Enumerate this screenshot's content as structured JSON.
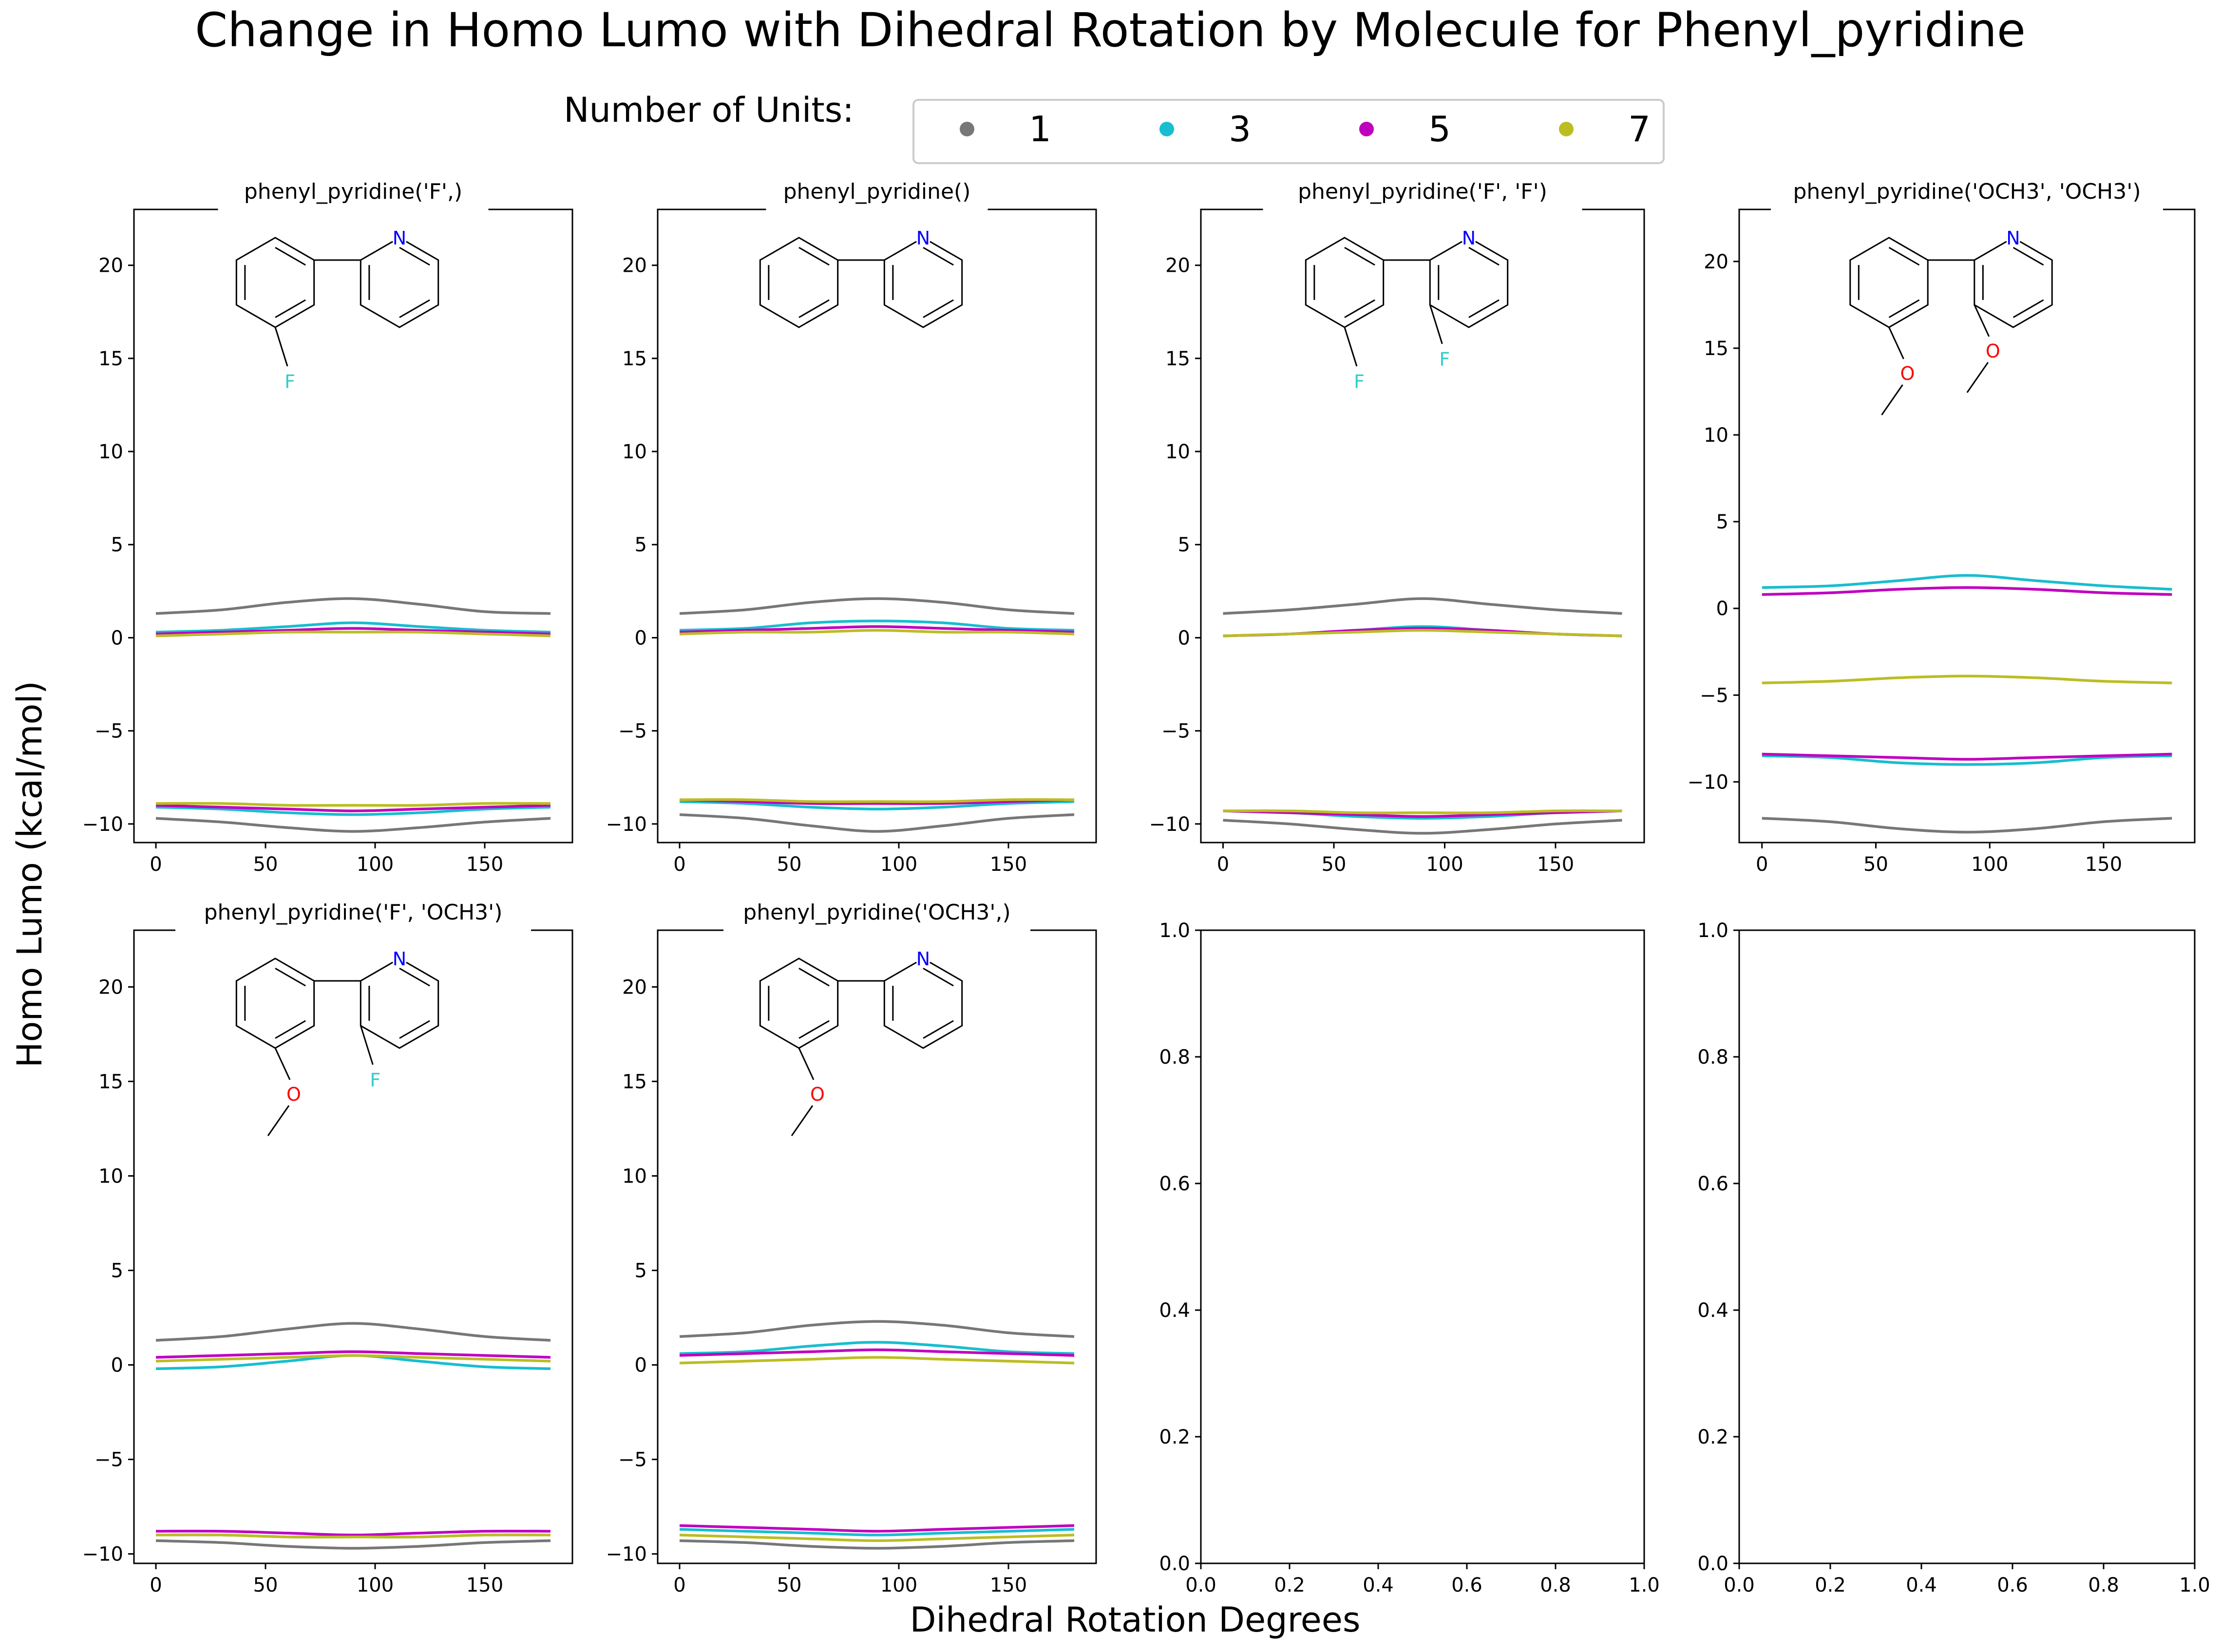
{
  "title": "Change in Homo Lumo with Dihedral Rotation by Molecule for Phenyl_pyridine",
  "ylabel": "Homo Lumo (kcal/mol)",
  "xlabel": "Dihedral Rotation Degrees",
  "legend": {
    "title": "Number of Units:",
    "placement": "top-center",
    "entries": [
      {
        "label": "1",
        "color": "#777777"
      },
      {
        "label": "3",
        "color": "#17becf"
      },
      {
        "label": "5",
        "color": "#bf00bf"
      },
      {
        "label": "7",
        "color": "#bcbd22"
      }
    ]
  },
  "colors": {
    "1": "#777777",
    "3": "#17becf",
    "5": "#bf00bf",
    "7": "#bcbd22"
  },
  "chart_data": [
    {
      "type": "line",
      "title": "phenyl_pyridine('F',)",
      "structure": "2-(2-fluorophenyl)pyridine",
      "x": [
        0,
        30,
        60,
        90,
        120,
        150,
        180
      ],
      "xticks": [
        0,
        50,
        100,
        150
      ],
      "yticks": [
        -10,
        -5,
        0,
        5,
        10,
        15,
        20
      ],
      "ylim": [
        -11,
        23
      ],
      "series": [
        {
          "name": "1",
          "values": [
            1.3,
            1.5,
            1.9,
            2.1,
            1.8,
            1.4,
            1.3
          ]
        },
        {
          "name": "3",
          "values": [
            0.3,
            0.4,
            0.6,
            0.8,
            0.6,
            0.4,
            0.3
          ]
        },
        {
          "name": "5",
          "values": [
            0.2,
            0.3,
            0.4,
            0.5,
            0.4,
            0.3,
            0.2
          ]
        },
        {
          "name": "7",
          "values": [
            0.1,
            0.2,
            0.3,
            0.3,
            0.3,
            0.2,
            0.1
          ]
        },
        {
          "name": "1",
          "values": [
            -9.7,
            -9.9,
            -10.2,
            -10.4,
            -10.2,
            -9.9,
            -9.7
          ]
        },
        {
          "name": "3",
          "values": [
            -9.1,
            -9.2,
            -9.4,
            -9.5,
            -9.4,
            -9.2,
            -9.1
          ]
        },
        {
          "name": "5",
          "values": [
            -9.0,
            -9.1,
            -9.2,
            -9.3,
            -9.2,
            -9.1,
            -9.0
          ]
        },
        {
          "name": "7",
          "values": [
            -8.9,
            -8.9,
            -9.0,
            -9.0,
            -9.0,
            -8.9,
            -8.9
          ]
        }
      ]
    },
    {
      "type": "line",
      "title": "phenyl_pyridine()",
      "structure": "2-phenylpyridine",
      "x": [
        0,
        30,
        60,
        90,
        120,
        150,
        180
      ],
      "xticks": [
        0,
        50,
        100,
        150
      ],
      "yticks": [
        -10,
        -5,
        0,
        5,
        10,
        15,
        20
      ],
      "ylim": [
        -11,
        23
      ],
      "series": [
        {
          "name": "1",
          "values": [
            1.3,
            1.5,
            1.9,
            2.1,
            1.9,
            1.5,
            1.3
          ]
        },
        {
          "name": "3",
          "values": [
            0.4,
            0.5,
            0.8,
            0.9,
            0.8,
            0.5,
            0.4
          ]
        },
        {
          "name": "5",
          "values": [
            0.3,
            0.4,
            0.5,
            0.6,
            0.5,
            0.4,
            0.3
          ]
        },
        {
          "name": "7",
          "values": [
            0.2,
            0.3,
            0.3,
            0.4,
            0.3,
            0.3,
            0.2
          ]
        },
        {
          "name": "1",
          "values": [
            -9.5,
            -9.7,
            -10.1,
            -10.4,
            -10.1,
            -9.7,
            -9.5
          ]
        },
        {
          "name": "3",
          "values": [
            -8.8,
            -8.9,
            -9.1,
            -9.2,
            -9.1,
            -8.9,
            -8.8
          ]
        },
        {
          "name": "5",
          "values": [
            -8.7,
            -8.8,
            -8.9,
            -8.9,
            -8.9,
            -8.8,
            -8.7
          ]
        },
        {
          "name": "7",
          "values": [
            -8.7,
            -8.7,
            -8.8,
            -8.8,
            -8.8,
            -8.7,
            -8.7
          ]
        }
      ]
    },
    {
      "type": "line",
      "title": "phenyl_pyridine('F', 'F')",
      "structure": "2-(2-fluorophenyl)-3-fluoropyridine",
      "x": [
        0,
        30,
        60,
        90,
        120,
        150,
        180
      ],
      "xticks": [
        0,
        50,
        100,
        150
      ],
      "yticks": [
        -10,
        -5,
        0,
        5,
        10,
        15,
        20
      ],
      "ylim": [
        -11,
        23
      ],
      "series": [
        {
          "name": "1",
          "values": [
            1.3,
            1.5,
            1.8,
            2.1,
            1.8,
            1.5,
            1.3
          ]
        },
        {
          "name": "3",
          "values": [
            0.1,
            0.2,
            0.4,
            0.6,
            0.4,
            0.2,
            0.1
          ]
        },
        {
          "name": "5",
          "values": [
            0.1,
            0.2,
            0.4,
            0.5,
            0.4,
            0.2,
            0.1
          ]
        },
        {
          "name": "7",
          "values": [
            0.1,
            0.2,
            0.3,
            0.4,
            0.3,
            0.2,
            0.1
          ]
        },
        {
          "name": "1",
          "values": [
            -9.8,
            -10.0,
            -10.3,
            -10.5,
            -10.3,
            -10.0,
            -9.8
          ]
        },
        {
          "name": "3",
          "values": [
            -9.3,
            -9.4,
            -9.6,
            -9.7,
            -9.6,
            -9.4,
            -9.3
          ]
        },
        {
          "name": "5",
          "values": [
            -9.3,
            -9.4,
            -9.5,
            -9.6,
            -9.5,
            -9.4,
            -9.3
          ]
        },
        {
          "name": "7",
          "values": [
            -9.3,
            -9.3,
            -9.4,
            -9.4,
            -9.4,
            -9.3,
            -9.3
          ]
        }
      ]
    },
    {
      "type": "line",
      "title": "phenyl_pyridine('OCH3', 'OCH3')",
      "structure": "2-(2-methoxyphenyl)-3-methoxypyridine",
      "x": [
        0,
        30,
        60,
        90,
        120,
        150,
        180
      ],
      "xticks": [
        0,
        50,
        100,
        150
      ],
      "yticks": [
        -10,
        -5,
        0,
        5,
        10,
        15,
        20
      ],
      "ylim": [
        -13.5,
        23
      ],
      "series": [
        {
          "name": "1",
          "values": [
            -12.1,
            -12.3,
            -12.7,
            -12.9,
            -12.7,
            -12.3,
            -12.1
          ]
        },
        {
          "name": "3",
          "values": [
            1.2,
            1.3,
            1.6,
            1.9,
            1.6,
            1.3,
            1.1
          ]
        },
        {
          "name": "5",
          "values": [
            0.8,
            0.9,
            1.1,
            1.2,
            1.1,
            0.9,
            0.8
          ]
        },
        {
          "name": "7",
          "values": [
            -4.3,
            -4.2,
            -4.0,
            -3.9,
            -4.0,
            -4.2,
            -4.3
          ]
        },
        {
          "name": "3",
          "values": [
            -8.5,
            -8.6,
            -8.9,
            -9.0,
            -8.9,
            -8.6,
            -8.5
          ]
        },
        {
          "name": "5",
          "values": [
            -8.4,
            -8.5,
            -8.6,
            -8.7,
            -8.6,
            -8.5,
            -8.4
          ]
        }
      ]
    },
    {
      "type": "line",
      "title": "phenyl_pyridine('F', 'OCH3')",
      "structure": "2-(2-methoxyphenyl)-3-fluoropyridine",
      "x": [
        0,
        30,
        60,
        90,
        120,
        150,
        180
      ],
      "xticks": [
        0,
        50,
        100,
        150
      ],
      "yticks": [
        -10,
        -5,
        0,
        5,
        10,
        15,
        20
      ],
      "ylim": [
        -10.5,
        23
      ],
      "series": [
        {
          "name": "1",
          "values": [
            1.3,
            1.5,
            1.9,
            2.2,
            1.9,
            1.5,
            1.3
          ]
        },
        {
          "name": "3",
          "values": [
            -0.2,
            -0.1,
            0.2,
            0.5,
            0.2,
            -0.1,
            -0.2
          ]
        },
        {
          "name": "5",
          "values": [
            0.4,
            0.5,
            0.6,
            0.7,
            0.6,
            0.5,
            0.4
          ]
        },
        {
          "name": "7",
          "values": [
            0.2,
            0.3,
            0.4,
            0.5,
            0.4,
            0.3,
            0.2
          ]
        },
        {
          "name": "1",
          "values": [
            -9.3,
            -9.4,
            -9.6,
            -9.7,
            -9.6,
            -9.4,
            -9.3
          ]
        },
        {
          "name": "3",
          "values": [
            -9.0,
            -9.0,
            -9.1,
            -9.1,
            -9.1,
            -9.0,
            -9.0
          ]
        },
        {
          "name": "5",
          "values": [
            -8.8,
            -8.8,
            -8.9,
            -9.0,
            -8.9,
            -8.8,
            -8.8
          ]
        },
        {
          "name": "7",
          "values": [
            -9.0,
            -9.0,
            -9.1,
            -9.1,
            -9.1,
            -9.0,
            -9.0
          ]
        }
      ]
    },
    {
      "type": "line",
      "title": "phenyl_pyridine('OCH3',)",
      "structure": "2-(2-methoxyphenyl)pyridine",
      "x": [
        0,
        30,
        60,
        90,
        120,
        150,
        180
      ],
      "xticks": [
        0,
        50,
        100,
        150
      ],
      "yticks": [
        -10,
        -5,
        0,
        5,
        10,
        15,
        20
      ],
      "ylim": [
        -10.5,
        23
      ],
      "series": [
        {
          "name": "1",
          "values": [
            1.5,
            1.7,
            2.1,
            2.3,
            2.1,
            1.7,
            1.5
          ]
        },
        {
          "name": "3",
          "values": [
            0.6,
            0.7,
            1.0,
            1.2,
            1.0,
            0.7,
            0.6
          ]
        },
        {
          "name": "5",
          "values": [
            0.5,
            0.6,
            0.7,
            0.8,
            0.7,
            0.6,
            0.5
          ]
        },
        {
          "name": "7",
          "values": [
            0.1,
            0.2,
            0.3,
            0.4,
            0.3,
            0.2,
            0.1
          ]
        },
        {
          "name": "1",
          "values": [
            -9.3,
            -9.4,
            -9.6,
            -9.7,
            -9.6,
            -9.4,
            -9.3
          ]
        },
        {
          "name": "3",
          "values": [
            -8.7,
            -8.8,
            -8.9,
            -9.0,
            -8.9,
            -8.8,
            -8.7
          ]
        },
        {
          "name": "5",
          "values": [
            -8.5,
            -8.6,
            -8.7,
            -8.8,
            -8.7,
            -8.6,
            -8.5
          ]
        },
        {
          "name": "7",
          "values": [
            -9.0,
            -9.1,
            -9.2,
            -9.3,
            -9.2,
            -9.1,
            -9.0
          ]
        }
      ]
    },
    {
      "type": "line",
      "title": "",
      "x": [],
      "xticks": [
        0.0,
        0.2,
        0.4,
        0.6,
        0.8,
        1.0
      ],
      "yticks": [
        0.0,
        0.2,
        0.4,
        0.6,
        0.8,
        1.0
      ],
      "xlim": [
        0,
        1
      ],
      "ylim": [
        0,
        1
      ],
      "series": []
    },
    {
      "type": "line",
      "title": "",
      "x": [],
      "xticks": [
        0.0,
        0.2,
        0.4,
        0.6,
        0.8,
        1.0
      ],
      "yticks": [
        0.0,
        0.2,
        0.4,
        0.6,
        0.8,
        1.0
      ],
      "xlim": [
        0,
        1
      ],
      "ylim": [
        0,
        1
      ],
      "series": []
    }
  ]
}
